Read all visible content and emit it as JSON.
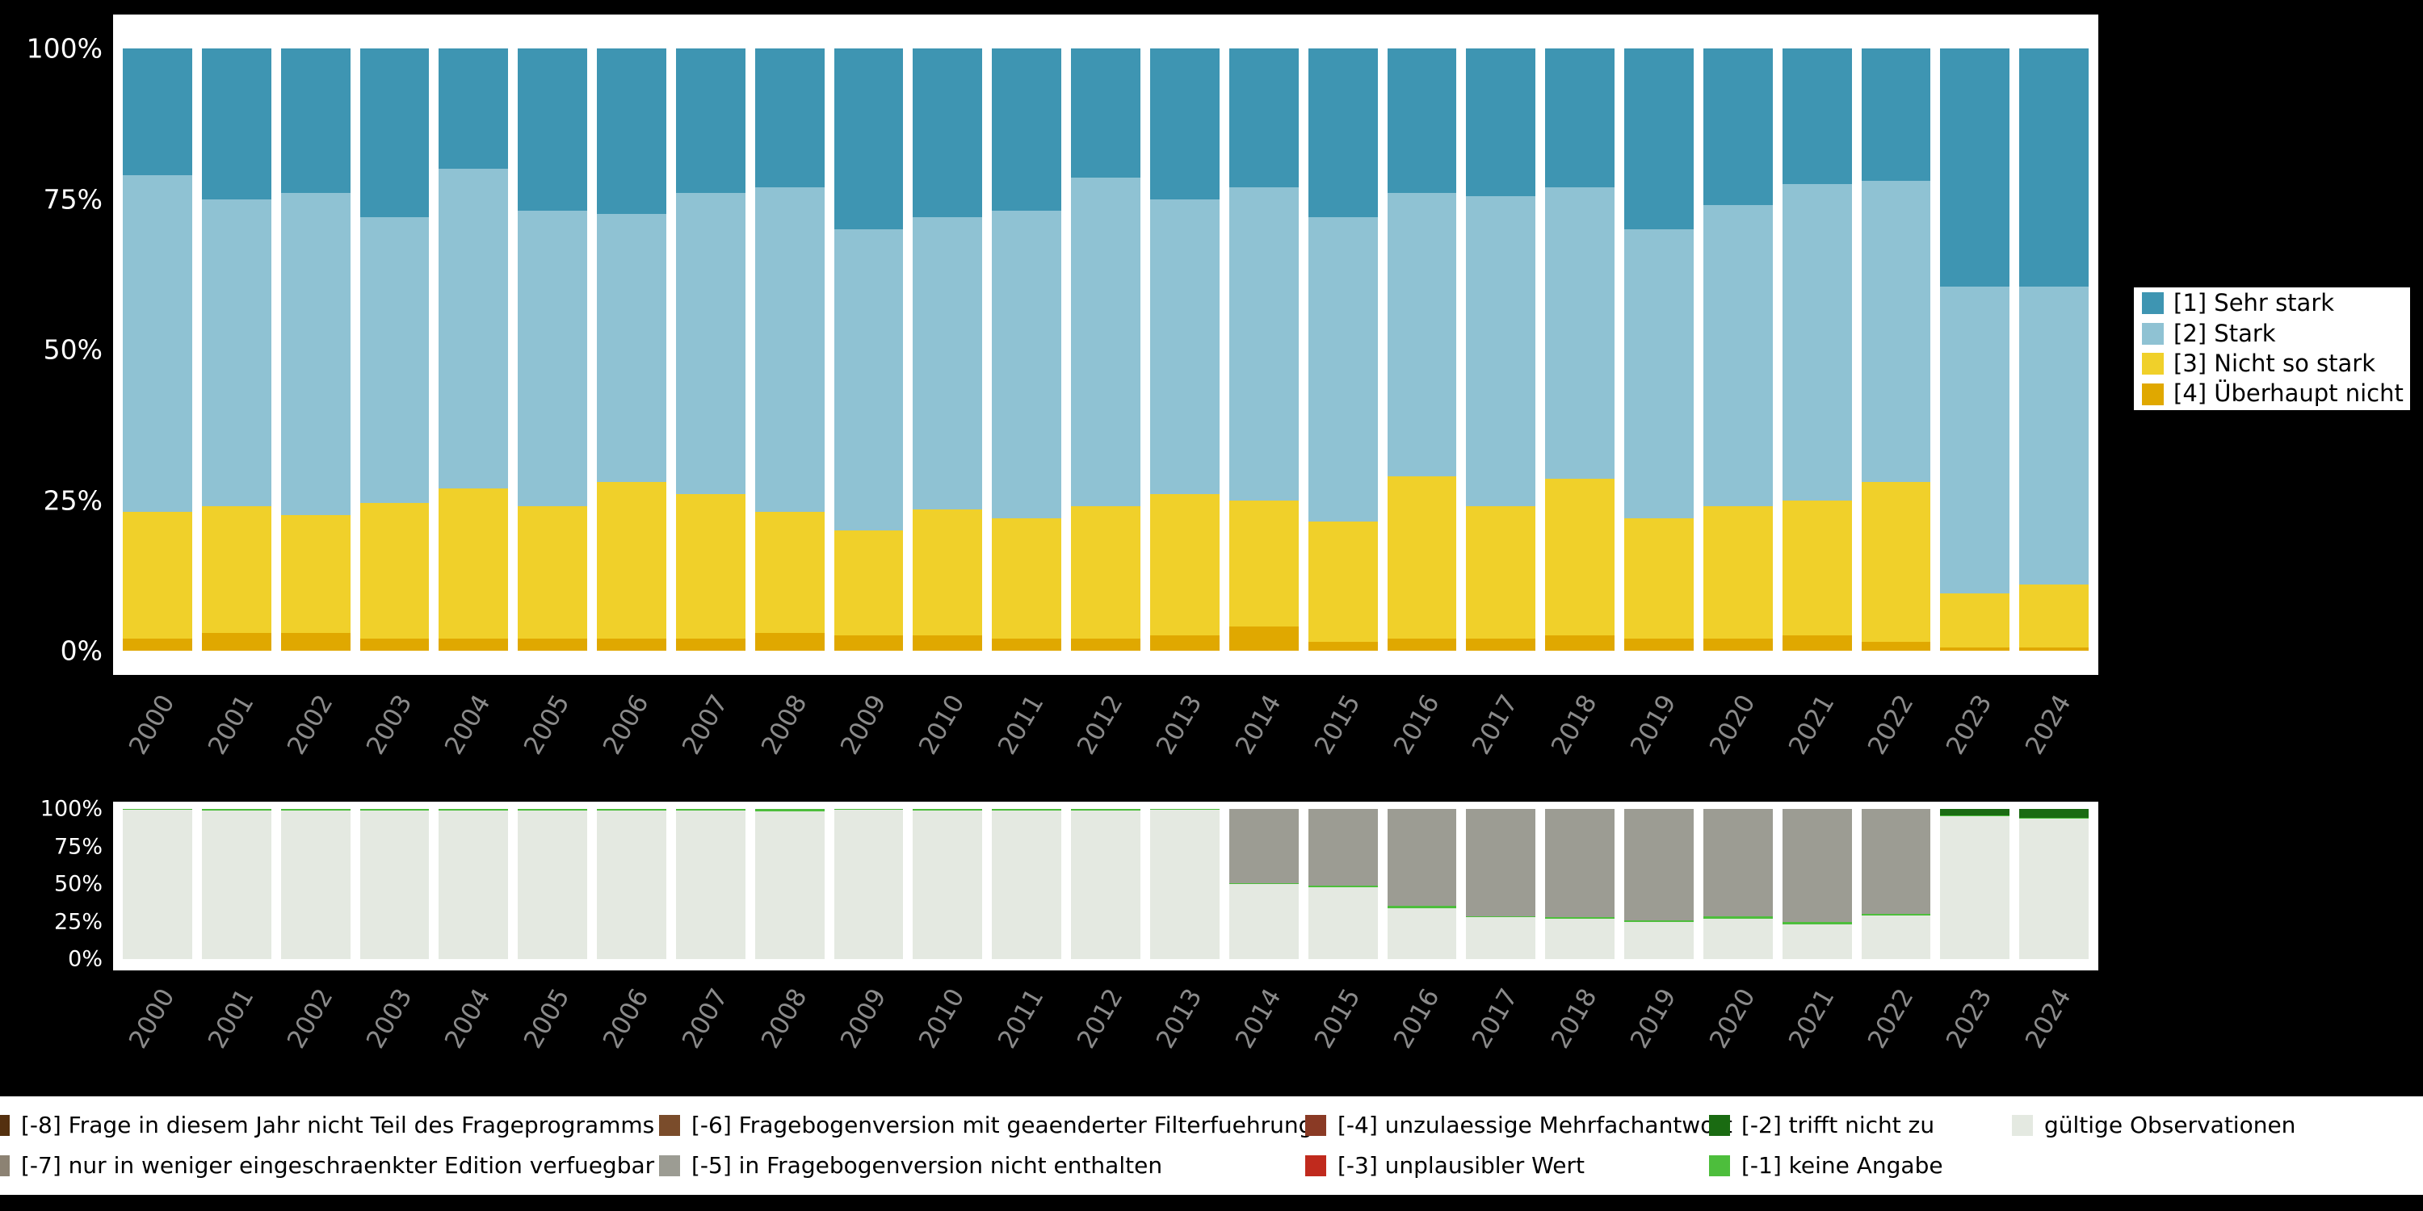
{
  "page": {
    "background_color": "#000000",
    "panel_color": "#ffffff"
  },
  "chart_data": [
    {
      "id": "frequencies",
      "mount": "top",
      "type": "bar",
      "stacked": true,
      "unit": "percent",
      "grid": false,
      "legend_position": "right",
      "ylim": [
        0,
        100
      ],
      "yticks": [
        "0%",
        "25%",
        "50%",
        "75%",
        "100%"
      ],
      "categories": [
        "2000",
        "2001",
        "2002",
        "2003",
        "2004",
        "2005",
        "2006",
        "2007",
        "2008",
        "2009",
        "2010",
        "2011",
        "2012",
        "2013",
        "2014",
        "2015",
        "2016",
        "2017",
        "2018",
        "2019",
        "2020",
        "2021",
        "2022",
        "2023",
        "2024"
      ],
      "stack_order_bottom_to_top": [
        "[4] Überhaupt nicht",
        "[3] Nicht so stark",
        "[2] Stark",
        "[1] Sehr stark"
      ],
      "series": [
        {
          "name": "[1] Sehr stark",
          "color": "#3E95B2",
          "values": [
            21,
            25,
            24,
            28,
            20,
            27,
            27.5,
            24,
            23,
            30,
            28,
            27,
            21.5,
            25,
            23,
            28,
            24,
            24.5,
            23,
            30,
            26,
            22.5,
            22,
            39.5,
            39.5
          ]
        },
        {
          "name": "[2] Stark",
          "color": "#8FC2D3",
          "values": [
            56,
            51,
            53.5,
            47.5,
            53,
            49,
            44.5,
            50,
            54,
            50,
            48.5,
            51,
            54.5,
            49,
            52,
            50.5,
            47,
            51.5,
            48.5,
            48,
            50,
            52.5,
            50,
            51,
            49.5
          ]
        },
        {
          "name": "[3] Nicht so stark",
          "color": "#F0D02A",
          "values": [
            21,
            21,
            19.5,
            22.5,
            25,
            22,
            26,
            24,
            20,
            17.5,
            21,
            20,
            22,
            23.5,
            21,
            20,
            27,
            22,
            26,
            20,
            22,
            22.5,
            26.5,
            9,
            10.5
          ]
        },
        {
          "name": "[4] Überhaupt nicht",
          "color": "#E0A800",
          "values": [
            2,
            3,
            3,
            2,
            2,
            2,
            2,
            2,
            3,
            2.5,
            2.5,
            2,
            2,
            2.5,
            4,
            1.5,
            2,
            2,
            2.5,
            2,
            2,
            2.5,
            1.5,
            0.5,
            0.5
          ]
        }
      ]
    },
    {
      "id": "missings",
      "mount": "bottom",
      "type": "bar",
      "stacked": true,
      "unit": "percent",
      "grid": false,
      "ylim": [
        0,
        100
      ],
      "yticks": [
        "0%",
        "25%",
        "50%",
        "75%",
        "100%"
      ],
      "categories": [
        "2000",
        "2001",
        "2002",
        "2003",
        "2004",
        "2005",
        "2006",
        "2007",
        "2008",
        "2009",
        "2010",
        "2011",
        "2012",
        "2013",
        "2014",
        "2015",
        "2016",
        "2017",
        "2018",
        "2019",
        "2020",
        "2021",
        "2022",
        "2023",
        "2024"
      ],
      "stack_order_bottom_to_top": [
        "gültige Observationen",
        "[-1] keine Angabe",
        "[-5] in Fragebogenversion nicht enthalten",
        "[-2] trifft nicht zu"
      ],
      "series": [
        {
          "name": "gültige Observationen",
          "color": "#E4E9E1",
          "values": [
            99.5,
            99,
            99,
            99.2,
            99.2,
            99.2,
            99.2,
            99.2,
            98.5,
            99.3,
            99.2,
            99.2,
            99,
            99.3,
            50,
            48,
            34,
            28,
            27,
            25,
            27,
            23,
            29,
            95,
            93.5
          ]
        },
        {
          "name": "[-1] keine Angabe",
          "color": "#4DBE3C",
          "values": [
            0.5,
            1,
            1,
            0.8,
            0.8,
            0.8,
            0.8,
            0.8,
            1.5,
            0.7,
            0.8,
            0.8,
            1,
            0.7,
            0.5,
            1,
            1.5,
            0.7,
            0.8,
            1,
            1.5,
            1.5,
            1,
            0.5,
            0.5
          ]
        },
        {
          "name": "[-5] in Fragebogenversion nicht enthalten",
          "color": "#9C9C93",
          "values": [
            0,
            0,
            0,
            0,
            0,
            0,
            0,
            0,
            0,
            0,
            0,
            0,
            0,
            0,
            49.5,
            51,
            64.5,
            71.3,
            72.2,
            74,
            71.5,
            75.5,
            70,
            0,
            0
          ]
        },
        {
          "name": "[-2] trifft nicht zu",
          "color": "#1A6B12",
          "values": [
            0,
            0,
            0,
            0,
            0,
            0,
            0,
            0,
            0,
            0,
            0,
            0,
            0,
            0,
            0,
            0,
            0,
            0,
            0,
            0,
            0,
            0,
            0,
            4.5,
            6
          ]
        }
      ]
    }
  ],
  "legend_top": {
    "items": [
      {
        "label": "[1] Sehr stark",
        "color": "#3E95B2"
      },
      {
        "label": "[2] Stark",
        "color": "#8FC2D3"
      },
      {
        "label": "[3] Nicht so stark",
        "color": "#F0D02A"
      },
      {
        "label": "[4] Überhaupt nicht",
        "color": "#E0A800"
      }
    ]
  },
  "legend_bottom": {
    "rows": [
      [
        {
          "label": "[-8] Frage in diesem Jahr nicht Teil des Frageprogramms",
          "color": "#54300F"
        },
        {
          "label": "[-6] Fragebogenversion mit geaenderter Filterfuehrung",
          "color": "#7A4C2B"
        },
        {
          "label": "[-4] unzulaessige Mehrfachantwort",
          "color": "#8A3A25"
        },
        {
          "label": "[-2] trifft nicht zu",
          "color": "#1A6B12"
        },
        {
          "label": "gültige Observationen",
          "color": "#E4E9E1"
        }
      ],
      [
        {
          "label": "[-7] nur in weniger eingeschraenkter Edition verfuegbar",
          "color": "#8C8273"
        },
        {
          "label": "[-5] in Fragebogenversion nicht enthalten",
          "color": "#9C9C93"
        },
        {
          "label": "[-3] unplausibler Wert",
          "color": "#C02A1D"
        },
        {
          "label": "[-1] keine Angabe",
          "color": "#4DBE3C"
        }
      ]
    ]
  }
}
